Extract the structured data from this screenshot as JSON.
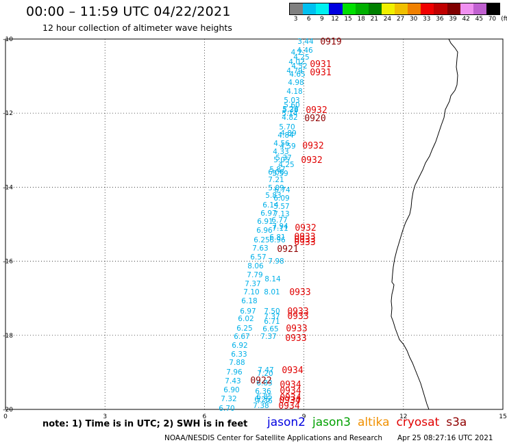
{
  "header": {
    "title": "00:00 – 11:59 UTC 04/22/2021",
    "subtitle": "12 hour collection of altimeter wave heights"
  },
  "legend": {
    "unit_label": "(ft)",
    "bins": [
      {
        "label": "3",
        "color": "#808080"
      },
      {
        "label": "6",
        "color": "#00c0f0"
      },
      {
        "label": "9",
        "color": "#00f0f0"
      },
      {
        "label": "12",
        "color": "#0000e0"
      },
      {
        "label": "15",
        "color": "#00e000"
      },
      {
        "label": "18",
        "color": "#00b000"
      },
      {
        "label": "21",
        "color": "#008000"
      },
      {
        "label": "24",
        "color": "#f0f000"
      },
      {
        "label": "27",
        "color": "#f0c000"
      },
      {
        "label": "30",
        "color": "#f08000"
      },
      {
        "label": "33",
        "color": "#f00000"
      },
      {
        "label": "36",
        "color": "#c00000"
      },
      {
        "label": "39",
        "color": "#800000"
      },
      {
        "label": "42",
        "color": "#f090f0"
      },
      {
        "label": "45",
        "color": "#c060d0"
      },
      {
        "label": "70",
        "color": "#000000"
      }
    ]
  },
  "map": {
    "y_ticks": [
      "-10",
      "-12",
      "-14",
      "-16",
      "-18",
      "-20"
    ],
    "x_ticks": [
      "0",
      "3",
      "6",
      "9",
      "12",
      "15"
    ],
    "colors": {
      "wave": "#00b0e8",
      "time_red": "#e00000",
      "time_dark": "#900000",
      "coast": "#000000",
      "grid": "#000000"
    },
    "wave_values": [
      "3.44",
      "4.46",
      "4.2",
      "4.25",
      "4.02",
      "4.52",
      "4.79",
      "4.65",
      "4.98",
      "4.18",
      "5.03",
      "5.60",
      "5.26",
      "5.14",
      "5.38",
      "4.82",
      "5.70",
      "4.89",
      "4.84",
      "4.56",
      "4.59",
      "4.33",
      "5.37",
      "5.05",
      "4.25",
      "5.87",
      "6.06",
      "5.59",
      "7.21",
      "5.09",
      "6.74",
      "5.83",
      "6.09",
      "6.14",
      "5.57",
      "6.97",
      "7.13",
      "6.77",
      "6.91",
      "7.94",
      "6.96",
      "7.11",
      "6.25",
      "6.81",
      "6.96",
      "7.63",
      "6.57",
      "7.98",
      "8.06",
      "7.79",
      "8.14",
      "7.37",
      "7.10",
      "8.01",
      "6.18",
      "6.97",
      "7.50",
      "6.02",
      "7.37",
      "6.71",
      "6.25",
      "6.65",
      "6.67",
      "7.37",
      "6.92",
      "6.33",
      "7.88",
      "7.47",
      "7.96",
      "7.20",
      "7.43",
      "6.83",
      "6.90",
      "6.36",
      "6.85",
      "7.32",
      "6.25",
      "7.36",
      "6.70",
      "7.38"
    ],
    "time_labels": [
      "0919",
      "0931",
      "0931",
      "0932",
      "0920",
      "0932",
      "0932",
      "0932",
      "0933",
      "0933",
      "0933",
      "0921",
      "0933",
      "0933",
      "0933",
      "0933",
      "0933",
      "0934",
      "0922",
      "0934",
      "0934",
      "0934",
      "0934",
      "0934"
    ]
  },
  "footer": {
    "note": "note: 1) Time is in UTC; 2) SWH is in feet",
    "missions": [
      {
        "name": "jason2",
        "color": "#0000e0"
      },
      {
        "name": "jason3",
        "color": "#00a000"
      },
      {
        "name": "altika",
        "color": "#f09000"
      },
      {
        "name": "cryosat",
        "color": "#e00000"
      },
      {
        "name": "s3a",
        "color": "#900000"
      }
    ],
    "credit": "NOAA/NESDIS Center for Satellite Applications and Research",
    "timestamp": "Apr 25 08:27:16 UTC 2021"
  }
}
